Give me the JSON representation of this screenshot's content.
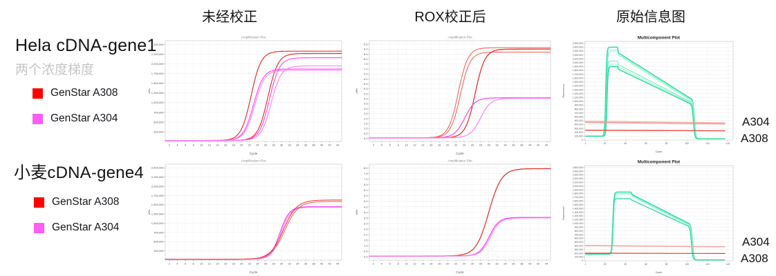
{
  "page": {
    "background": "#ffffff"
  },
  "columns": [
    {
      "label": "未经校正"
    },
    {
      "label": "ROX校正后"
    },
    {
      "label": "原始信息图"
    }
  ],
  "rows": [
    {
      "title": "Hela cDNA-gene1",
      "subtitle": "两个浓度梯度",
      "legend": [
        {
          "label": "GenStar A308",
          "color": "#fe0000"
        },
        {
          "label": "GenStar A304",
          "color": "#ff5df5"
        }
      ]
    },
    {
      "title": "小麦cDNA-gene4",
      "subtitle": "",
      "legend": [
        {
          "label": "GenStar A308",
          "color": "#fe0000"
        },
        {
          "label": "GenStar A304",
          "color": "#ff5df5"
        }
      ]
    }
  ],
  "chart_data": [
    {
      "id": "hela-uncorrected",
      "type": "line",
      "subtype": "amplification",
      "title": "Amplification Plot",
      "xlabel": "Cycle",
      "ylabel": "ΔRn",
      "xlim": [
        1,
        45
      ],
      "xtick_start": 2,
      "xtick_end": 44,
      "xtick_step": 2,
      "ylim": [
        0,
        2600000
      ],
      "ytick_start": 250000,
      "ytick_end": 2500000,
      "ytick_step": 250000,
      "ytick_format": "int",
      "grid": true,
      "series": [
        {
          "kind": "sigmoid",
          "color": "#e8312f",
          "width": 1.2,
          "ct": 19.0,
          "plateau": 2330000,
          "base": 25000,
          "k": 0.8
        },
        {
          "kind": "sigmoid",
          "color": "#e8312f",
          "width": 1.2,
          "ct": 23.2,
          "plateau": 2270000,
          "base": 25000,
          "k": 0.8
        },
        {
          "kind": "sigmoid",
          "color": "#f545f0",
          "width": 1.1,
          "ct": 19.6,
          "plateau": 1870000,
          "base": 25000,
          "k": 0.8
        },
        {
          "kind": "sigmoid",
          "color": "#fb7ef8",
          "width": 1.1,
          "ct": 19.9,
          "plateau": 1840000,
          "base": 25000,
          "k": 0.8
        },
        {
          "kind": "sigmoid",
          "color": "#f545f0",
          "width": 1.1,
          "ct": 23.6,
          "plateau": 2160000,
          "base": 25000,
          "k": 0.8
        },
        {
          "kind": "sigmoid",
          "color": "#fb7ef8",
          "width": 1.1,
          "ct": 24.0,
          "plateau": 1950000,
          "base": 25000,
          "k": 0.8
        }
      ]
    },
    {
      "id": "hela-rox",
      "type": "line",
      "subtype": "amplification",
      "title": "Amplification Plot",
      "xlabel": "Cycle",
      "ylabel": "ΔRn",
      "xlim": [
        1,
        45
      ],
      "xtick_start": 2,
      "xtick_end": 44,
      "xtick_step": 2,
      "ylim": [
        -0.3,
        9.85
      ],
      "ytick_start": 0,
      "ytick_end": 9.5,
      "ytick_step": 0.5,
      "ytick_format": "dec",
      "grid": true,
      "series": [
        {
          "kind": "sigmoid",
          "color": "#ee5a52",
          "width": 1.0,
          "ct": 19.2,
          "plateau": 9.15,
          "base": 0.07,
          "k": 0.85
        },
        {
          "kind": "sigmoid",
          "color": "#ee5a52",
          "width": 1.0,
          "ct": 19.7,
          "plateau": 8.7,
          "base": 0.07,
          "k": 0.85
        },
        {
          "kind": "sigmoid",
          "color": "#e8312f",
          "width": 1.3,
          "ct": 23.3,
          "plateau": 9.0,
          "base": 0.07,
          "k": 0.85
        },
        {
          "kind": "sigmoid",
          "color": "#f545f0",
          "width": 1.2,
          "ct": 20.8,
          "plateau": 4.1,
          "base": 0.07,
          "k": 0.8
        },
        {
          "kind": "sigmoid",
          "color": "#fb7ef8",
          "width": 1.2,
          "ct": 24.6,
          "plateau": 4.05,
          "base": 0.07,
          "k": 0.8
        }
      ]
    },
    {
      "id": "hela-multicomponent",
      "type": "line",
      "subtype": "multicomponent",
      "title": "Multicomponent Plot",
      "xlabel": "Cycle",
      "ylabel": "Fluorescence",
      "xlim": [
        0,
        145
      ],
      "xticks": [
        1,
        20,
        40,
        60,
        80,
        100,
        120,
        140
      ],
      "ylim": [
        0,
        2550000
      ],
      "ytick_start": 0,
      "ytick_end": 2500000,
      "ytick_step": 100000,
      "ytick_format": "int",
      "grid": true,
      "right_labels": [
        "A304",
        "A308"
      ],
      "series": [
        {
          "kind": "multi",
          "color": "#29dd9b",
          "width": 1.5,
          "baseline": 100000,
          "rise": 19.0,
          "peak": 2400000,
          "step": 32.5,
          "stepdrop": 150000,
          "tail": 1060000,
          "fall": 106.0,
          "end": 30000
        },
        {
          "kind": "multi",
          "color": "#7deec6",
          "width": 0.9,
          "baseline": 100000,
          "rise": 19.6,
          "peak": 2330000,
          "step": 32.5,
          "stepdrop": 120000,
          "tail": 1030000,
          "fall": 106.0,
          "end": 30000
        },
        {
          "kind": "multi",
          "color": "#a0f2d4",
          "width": 0.9,
          "baseline": 100000,
          "rise": 20.0,
          "peak": 2280000,
          "step": 32.5,
          "stepdrop": 95000,
          "tail": 1000000,
          "fall": 106.0,
          "end": 30000
        },
        {
          "kind": "multi",
          "color": "#5ce8b4",
          "width": 0.9,
          "baseline": 100000,
          "rise": 19.4,
          "peak": 2040000,
          "step": 32.5,
          "stepdrop": 95000,
          "tail": 980000,
          "fall": 105.5,
          "end": 30000
        },
        {
          "kind": "multi",
          "color": "#8ff0cc",
          "width": 0.9,
          "baseline": 100000,
          "rise": 19.8,
          "peak": 1960000,
          "step": 32.5,
          "stepdrop": 75000,
          "tail": 955000,
          "fall": 105.5,
          "end": 30000
        },
        {
          "kind": "multi",
          "color": "#29dd9b",
          "width": 1.5,
          "baseline": 100000,
          "rise": 20.2,
          "peak": 1905000,
          "step": 32.5,
          "stepdrop": 75000,
          "tail": 935000,
          "fall": 105.0,
          "end": 30000
        },
        {
          "kind": "flat",
          "color": "#f2928c",
          "width": 1.0,
          "y0": 487000,
          "y1": 447000,
          "op": 0.85
        },
        {
          "kind": "flat",
          "color": "#f5a8a2",
          "width": 1.0,
          "y0": 468000,
          "y1": 428000,
          "op": 0.85
        },
        {
          "kind": "flat",
          "color": "#ef7d79",
          "width": 1.0,
          "y0": 452000,
          "y1": 415000,
          "op": 0.85
        },
        {
          "kind": "flat",
          "color": "#e63029",
          "width": 1.3,
          "y0": 256000,
          "y1": 241000,
          "op": 0.95
        },
        {
          "kind": "flat",
          "color": "#f0605a",
          "width": 0.8,
          "y0": 248000,
          "y1": 234000,
          "op": 0.85
        }
      ]
    },
    {
      "id": "wheat-uncorrected",
      "type": "line",
      "subtype": "amplification",
      "title": "Amplification Plot",
      "xlabel": "Cycle",
      "ylabel": "ΔRn",
      "xlim": [
        1,
        45
      ],
      "xtick_start": 2,
      "xtick_end": 44,
      "xtick_step": 2,
      "ylim": [
        0,
        2600000
      ],
      "ytick_start": 250000,
      "ytick_end": 2500000,
      "ytick_step": 250000,
      "ytick_format": "int",
      "grid": true,
      "series": [
        {
          "kind": "sigmoid",
          "color": "#f545f0",
          "width": 1.3,
          "ct": 26.2,
          "plateau": 1450000,
          "base": 25000,
          "k": 0.85
        },
        {
          "kind": "sigmoid",
          "color": "#fb7ef8",
          "width": 1.1,
          "ct": 26.5,
          "plateau": 1435000,
          "base": 25000,
          "k": 0.85
        },
        {
          "kind": "sigmoid",
          "color": "#e8312f",
          "width": 1.0,
          "ct": 27.1,
          "plateau": 1630000,
          "base": 25000,
          "k": 0.6
        },
        {
          "kind": "sigmoid",
          "color": "#ee5a52",
          "width": 1.0,
          "ct": 27.4,
          "plateau": 1590000,
          "base": 25000,
          "k": 0.6
        }
      ]
    },
    {
      "id": "wheat-rox",
      "type": "line",
      "subtype": "amplification",
      "title": "Amplification Plot",
      "xlabel": "Cycle",
      "ylabel": "ΔRn",
      "xlim": [
        1,
        45
      ],
      "xtick_start": 2,
      "xtick_end": 44,
      "xtick_step": 2,
      "ylim": [
        -0.3,
        8.35
      ],
      "ytick_start": 0,
      "ytick_end": 8.0,
      "ytick_step": 0.5,
      "ytick_format": "dec",
      "grid": true,
      "series": [
        {
          "kind": "sigmoid",
          "color": "#e8312f",
          "width": 1.3,
          "ct": 26.6,
          "plateau": 7.95,
          "base": 0.07,
          "k": 0.65
        },
        {
          "kind": "sigmoid",
          "color": "#f545f0",
          "width": 1.3,
          "ct": 26.7,
          "plateau": 3.55,
          "base": 0.07,
          "k": 0.85
        },
        {
          "kind": "sigmoid",
          "color": "#fb7ef8",
          "width": 1.0,
          "ct": 27.0,
          "plateau": 3.5,
          "base": 0.07,
          "k": 0.85
        }
      ]
    },
    {
      "id": "wheat-multicomponent",
      "type": "line",
      "subtype": "multicomponent",
      "title": "Multicomponent Plot",
      "xlabel": "Cycle",
      "ylabel": "Fluorescence",
      "xlim": [
        0,
        145
      ],
      "xticks": [
        1,
        20,
        40,
        60,
        80,
        100,
        120,
        140
      ],
      "ylim": [
        0,
        2550000
      ],
      "ytick_start": 0,
      "ytick_end": 2500000,
      "ytick_step": 100000,
      "ytick_format": "int",
      "grid": true,
      "right_labels": [
        "A304",
        "A308"
      ],
      "series": [
        {
          "kind": "multi",
          "color": "#29dd9b",
          "width": 1.5,
          "baseline": 180000,
          "rise": 26.0,
          "peak": 1840000,
          "step": 46,
          "stepdrop": 70000,
          "tail": 990000,
          "fall": 104.0,
          "end": 25000
        },
        {
          "kind": "multi",
          "color": "#7deec6",
          "width": 0.9,
          "baseline": 180000,
          "rise": 26.4,
          "peak": 1800000,
          "step": 46,
          "stepdrop": 60000,
          "tail": 965000,
          "fall": 104.0,
          "end": 25000
        },
        {
          "kind": "multi",
          "color": "#a0f2d4",
          "width": 0.9,
          "baseline": 175000,
          "rise": 26.8,
          "peak": 1775000,
          "step": 46,
          "stepdrop": 55000,
          "tail": 945000,
          "fall": 103.5,
          "end": 25000
        },
        {
          "kind": "multi",
          "color": "#29dd9b",
          "width": 1.3,
          "baseline": 175000,
          "rise": 25.7,
          "peak": 1665000,
          "step": 45,
          "stepdrop": 35000,
          "tail": 925000,
          "fall": 103.0,
          "end": 25000
        },
        {
          "kind": "flat",
          "color": "#f2928c",
          "width": 1.0,
          "y0": 415000,
          "y1": 378000,
          "op": 0.85
        },
        {
          "kind": "flat",
          "color": "#f5a8a2",
          "width": 0.9,
          "y0": 400000,
          "y1": 368000,
          "op": 0.85
        },
        {
          "kind": "flat",
          "color": "#e63029",
          "width": 1.2,
          "y0": 206000,
          "y1": 195000,
          "op": 0.95
        }
      ]
    }
  ]
}
